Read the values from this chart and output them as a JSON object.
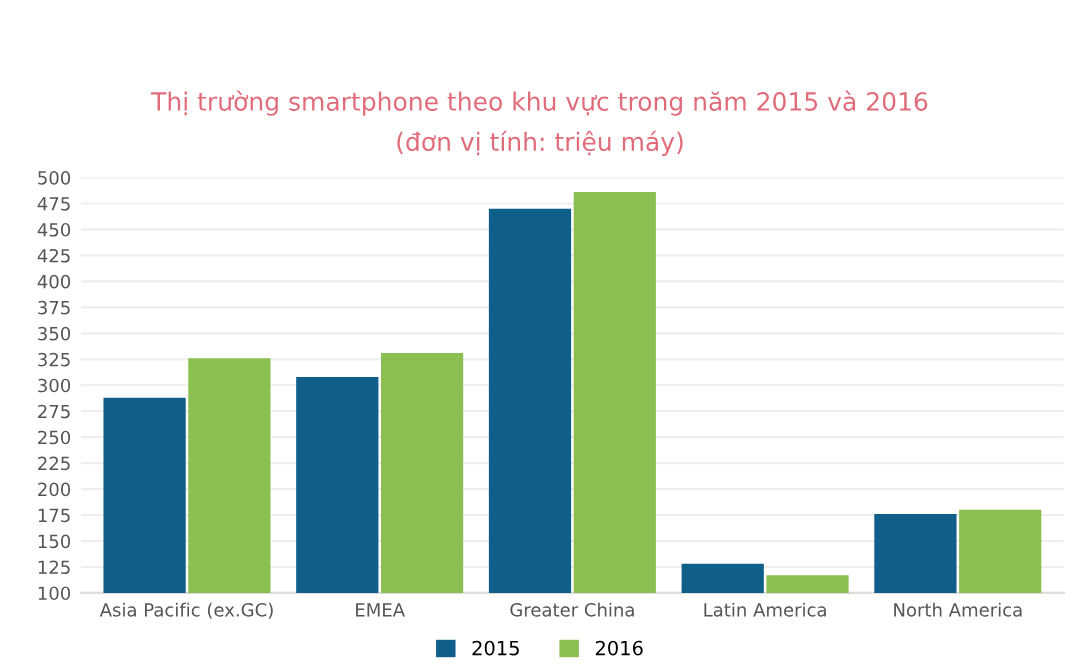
{
  "chart_data": {
    "type": "bar",
    "title": "Thị trường smartphone theo khu vực trong năm 2015 và 2016",
    "subtitle": "(đơn vị tính: triệu máy)",
    "categories": [
      "Asia Pacific (ex.GC)",
      "EMEA",
      "Greater China",
      "Latin America",
      "North America"
    ],
    "series": [
      {
        "name": "2015",
        "color": "#0f5f8a",
        "values": [
          288,
          308,
          470,
          128,
          176
        ]
      },
      {
        "name": "2016",
        "color": "#8cbf52",
        "values": [
          326,
          331,
          486,
          117,
          180
        ]
      }
    ],
    "ylim": [
      100,
      500
    ],
    "yticks": [
      100,
      125,
      150,
      175,
      200,
      225,
      250,
      275,
      300,
      325,
      350,
      375,
      400,
      425,
      450,
      475,
      500
    ],
    "grid": "y",
    "legend": "bottom"
  }
}
